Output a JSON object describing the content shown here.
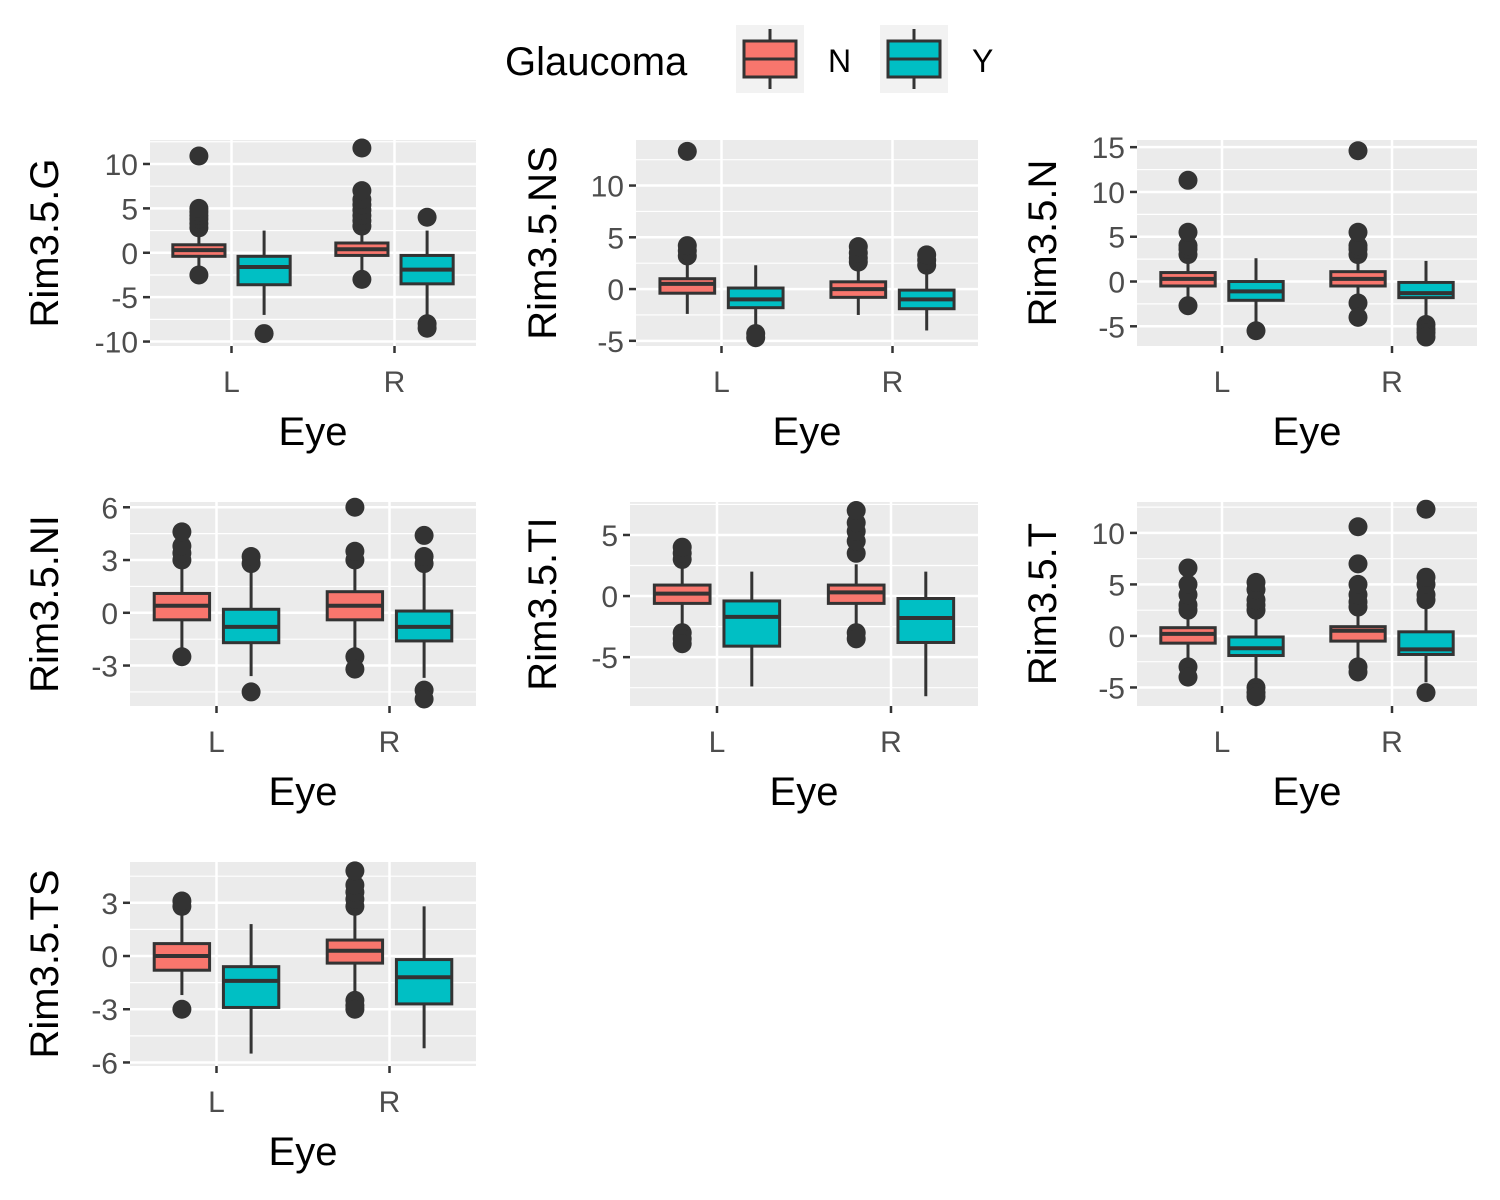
{
  "legend": {
    "title": "Glaucoma",
    "placement": "top",
    "items": [
      {
        "label": "N",
        "color": "#F8766D"
      },
      {
        "label": "Y",
        "color": "#00BFC4"
      }
    ]
  },
  "colors": {
    "panel_bg": "#EBEBEB",
    "grid": "#FFFFFF",
    "box_outline": "#333333",
    "text": "#000000",
    "tick_text": "#4D4D4D"
  },
  "chart_data": [
    {
      "type": "box",
      "ylabel": "Rim3.5.G",
      "xlabel": "Eye",
      "categories": [
        "L",
        "R"
      ],
      "ylim": [
        -10.5,
        12.7
      ],
      "yticks": [
        -10,
        -5,
        0,
        5,
        10
      ],
      "groups": [
        {
          "eye": "L",
          "glaucoma": "N",
          "whisker_low": -2,
          "q1": -0.4,
          "median": 0.3,
          "q3": 0.9,
          "whisker_high": 2,
          "outliers": [
            -2.5,
            2.8,
            3.3,
            3.8,
            4.2,
            4.6,
            5.0,
            10.9
          ]
        },
        {
          "eye": "L",
          "glaucoma": "Y",
          "whisker_low": -7,
          "q1": -3.6,
          "median": -1.6,
          "q3": -0.4,
          "whisker_high": 2.5,
          "outliers": [
            -9.1
          ]
        },
        {
          "eye": "R",
          "glaucoma": "N",
          "whisker_low": -2.5,
          "q1": -0.3,
          "median": 0.4,
          "q3": 1.1,
          "whisker_high": 2.6,
          "outliers": [
            -3.0,
            3.0,
            3.6,
            4.2,
            4.8,
            5.4,
            6.0,
            7.0,
            11.8
          ]
        },
        {
          "eye": "R",
          "glaucoma": "Y",
          "whisker_low": -7.5,
          "q1": -3.5,
          "median": -1.9,
          "q3": -0.3,
          "whisker_high": 2.5,
          "outliers": [
            4.0,
            -8.0,
            -8.5
          ]
        }
      ]
    },
    {
      "type": "box",
      "ylabel": "Rim3.5.NS",
      "xlabel": "Eye",
      "categories": [
        "L",
        "R"
      ],
      "ylim": [
        -5.5,
        14.4
      ],
      "yticks": [
        -5,
        0,
        5,
        10
      ],
      "groups": [
        {
          "eye": "L",
          "glaucoma": "N",
          "whisker_low": -2.4,
          "q1": -0.4,
          "median": 0.5,
          "q3": 1.0,
          "whisker_high": 2.5,
          "outliers": [
            3.2,
            3.7,
            4.2,
            13.3
          ]
        },
        {
          "eye": "L",
          "glaucoma": "Y",
          "whisker_low": -3.5,
          "q1": -1.8,
          "median": -1.0,
          "q3": 0.1,
          "whisker_high": 2.3,
          "outliers": [
            -4.3,
            -4.7
          ]
        },
        {
          "eye": "R",
          "glaucoma": "N",
          "whisker_low": -2.5,
          "q1": -0.8,
          "median": 0.0,
          "q3": 0.7,
          "whisker_high": 2.0,
          "outliers": [
            2.6,
            3.0,
            3.5,
            4.1
          ]
        },
        {
          "eye": "R",
          "glaucoma": "Y",
          "whisker_low": -4.0,
          "q1": -1.9,
          "median": -1.0,
          "q3": -0.1,
          "whisker_high": 1.8,
          "outliers": [
            2.3,
            2.8,
            3.3
          ]
        }
      ]
    },
    {
      "type": "box",
      "ylabel": "Rim3.5.N",
      "xlabel": "Eye",
      "categories": [
        "L",
        "R"
      ],
      "ylim": [
        -7.2,
        15.8
      ],
      "yticks": [
        -5,
        0,
        5,
        10,
        15
      ],
      "groups": [
        {
          "eye": "L",
          "glaucoma": "N",
          "whisker_low": -2.5,
          "q1": -0.5,
          "median": 0.3,
          "q3": 1.0,
          "whisker_high": 2.5,
          "outliers": [
            -2.7,
            3.0,
            3.6,
            4.0,
            5.5,
            11.3
          ]
        },
        {
          "eye": "L",
          "glaucoma": "Y",
          "whisker_low": -4.8,
          "q1": -2.1,
          "median": -1.1,
          "q3": 0.0,
          "whisker_high": 2.6,
          "outliers": [
            -5.5
          ]
        },
        {
          "eye": "R",
          "glaucoma": "N",
          "whisker_low": -2.2,
          "q1": -0.5,
          "median": 0.3,
          "q3": 1.1,
          "whisker_high": 2.5,
          "outliers": [
            -2.4,
            -4.0,
            3.0,
            3.6,
            4.0,
            5.5,
            14.6
          ]
        },
        {
          "eye": "R",
          "glaucoma": "Y",
          "whisker_low": -4.5,
          "q1": -1.8,
          "median": -1.3,
          "q3": -0.1,
          "whisker_high": 2.3,
          "outliers": [
            -4.8,
            -5.3,
            -5.7,
            -6.2
          ]
        }
      ]
    },
    {
      "type": "box",
      "ylabel": "Rim3.5.NI",
      "xlabel": "Eye",
      "categories": [
        "L",
        "R"
      ],
      "ylim": [
        -5.3,
        6.3
      ],
      "yticks": [
        -3,
        0,
        3,
        6
      ],
      "groups": [
        {
          "eye": "L",
          "glaucoma": "N",
          "whisker_low": -2.3,
          "q1": -0.4,
          "median": 0.4,
          "q3": 1.1,
          "whisker_high": 2.6,
          "outliers": [
            -2.5,
            3.0,
            3.4,
            3.8,
            4.6
          ]
        },
        {
          "eye": "L",
          "glaucoma": "Y",
          "whisker_low": -3.6,
          "q1": -1.7,
          "median": -0.8,
          "q3": 0.2,
          "whisker_high": 2.4,
          "outliers": [
            2.8,
            3.2,
            -4.5
          ]
        },
        {
          "eye": "R",
          "glaucoma": "N",
          "whisker_low": -2.2,
          "q1": -0.4,
          "median": 0.4,
          "q3": 1.2,
          "whisker_high": 2.6,
          "outliers": [
            -2.5,
            -3.2,
            3.0,
            3.5,
            6.0
          ]
        },
        {
          "eye": "R",
          "glaucoma": "Y",
          "whisker_low": -3.7,
          "q1": -1.6,
          "median": -0.8,
          "q3": 0.1,
          "whisker_high": 2.4,
          "outliers": [
            2.8,
            3.2,
            4.4,
            -4.4,
            -4.9
          ]
        }
      ]
    },
    {
      "type": "box",
      "ylabel": "Rim3.5.TI",
      "xlabel": "Eye",
      "categories": [
        "L",
        "R"
      ],
      "ylim": [
        -9.0,
        7.7
      ],
      "yticks": [
        -5,
        0,
        5
      ],
      "groups": [
        {
          "eye": "L",
          "glaucoma": "N",
          "whisker_low": -2.7,
          "q1": -0.6,
          "median": 0.2,
          "q3": 0.9,
          "whisker_high": 2.6,
          "outliers": [
            -3.0,
            -3.5,
            -3.9,
            3.0,
            3.5,
            4.0
          ]
        },
        {
          "eye": "L",
          "glaucoma": "Y",
          "whisker_low": -7.4,
          "q1": -4.1,
          "median": -1.7,
          "q3": -0.4,
          "whisker_high": 2.0,
          "outliers": []
        },
        {
          "eye": "R",
          "glaucoma": "N",
          "whisker_low": -2.6,
          "q1": -0.6,
          "median": 0.3,
          "q3": 0.9,
          "whisker_high": 2.6,
          "outliers": [
            -3.0,
            -3.5,
            3.5,
            4.5,
            5.3,
            6.0,
            7.0
          ]
        },
        {
          "eye": "R",
          "glaucoma": "Y",
          "whisker_low": -8.2,
          "q1": -3.8,
          "median": -1.8,
          "q3": -0.2,
          "whisker_high": 2.0,
          "outliers": []
        }
      ]
    },
    {
      "type": "box",
      "ylabel": "Rim3.5.T",
      "xlabel": "Eye",
      "categories": [
        "L",
        "R"
      ],
      "ylim": [
        -6.8,
        13.0
      ],
      "yticks": [
        -5,
        0,
        5,
        10
      ],
      "groups": [
        {
          "eye": "L",
          "glaucoma": "N",
          "whisker_low": -2.5,
          "q1": -0.7,
          "median": 0.2,
          "q3": 0.8,
          "whisker_high": 2.2,
          "outliers": [
            -3.0,
            -4.0,
            2.5,
            3.0,
            4.0,
            5.0,
            6.6
          ]
        },
        {
          "eye": "L",
          "glaucoma": "Y",
          "whisker_low": -4.5,
          "q1": -1.9,
          "median": -1.2,
          "q3": -0.1,
          "whisker_high": 2.0,
          "outliers": [
            -5.0,
            -5.5,
            -5.9,
            2.5,
            3.0,
            3.5,
            4.5,
            5.2
          ]
        },
        {
          "eye": "R",
          "glaucoma": "N",
          "whisker_low": -2.5,
          "q1": -0.5,
          "median": 0.5,
          "q3": 0.9,
          "whisker_high": 2.3,
          "outliers": [
            -3.0,
            -3.5,
            2.8,
            3.3,
            4.0,
            5.0,
            7.0,
            10.6
          ]
        },
        {
          "eye": "R",
          "glaucoma": "Y",
          "whisker_low": -4.5,
          "q1": -1.8,
          "median": -1.3,
          "q3": 0.4,
          "whisker_high": 3.0,
          "outliers": [
            -5.5,
            3.5,
            4.0,
            5.0,
            5.7,
            12.3
          ]
        }
      ]
    },
    {
      "type": "box",
      "ylabel": "Rim3.5.TS",
      "xlabel": "Eye",
      "categories": [
        "L",
        "R"
      ],
      "ylim": [
        -6.2,
        5.3
      ],
      "yticks": [
        -6,
        -3,
        0,
        3
      ],
      "groups": [
        {
          "eye": "L",
          "glaucoma": "N",
          "whisker_low": -2.2,
          "q1": -0.8,
          "median": 0.0,
          "q3": 0.7,
          "whisker_high": 2.6,
          "outliers": [
            -3.0,
            2.8,
            3.1
          ]
        },
        {
          "eye": "L",
          "glaucoma": "Y",
          "whisker_low": -5.5,
          "q1": -2.9,
          "median": -1.4,
          "q3": -0.6,
          "whisker_high": 1.8,
          "outliers": []
        },
        {
          "eye": "R",
          "glaucoma": "N",
          "whisker_low": -2.1,
          "q1": -0.4,
          "median": 0.3,
          "q3": 0.9,
          "whisker_high": 2.6,
          "outliers": [
            -2.5,
            -2.8,
            -3.0,
            2.8,
            3.2,
            3.6,
            4.0,
            4.8
          ]
        },
        {
          "eye": "R",
          "glaucoma": "Y",
          "whisker_low": -5.2,
          "q1": -2.7,
          "median": -1.2,
          "q3": -0.2,
          "whisker_high": 2.8,
          "outliers": []
        }
      ]
    }
  ]
}
